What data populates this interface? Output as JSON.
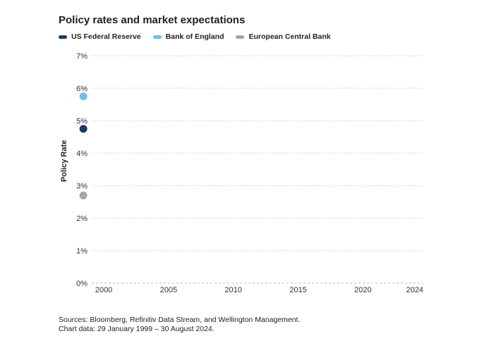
{
  "title": "Policy rates and market expectations",
  "legend": [
    {
      "label": "US Federal Reserve",
      "color": "#1b3a66"
    },
    {
      "label": "Bank of England",
      "color": "#6fbfe8"
    },
    {
      "label": "European Central Bank",
      "color": "#a6a6a6"
    }
  ],
  "source": {
    "line1": "Sources: Bloomberg, Refinitiv Data Stream, and Wellington Management.",
    "line2": "Chart data: 29 January 1999 – 30 August 2024."
  },
  "chart_data": {
    "type": "scatter",
    "ylabel": "Policy Rate",
    "xlabel": "",
    "xlim": [
      1999.07,
      2024.67
    ],
    "ylim": [
      0,
      7
    ],
    "x_ticks": [
      "2000",
      "2005",
      "2010",
      "2015",
      "2020",
      "2024"
    ],
    "y_ticks": [
      "0%",
      "1%",
      "2%",
      "3%",
      "4%",
      "5%",
      "6%",
      "7%"
    ],
    "grid": "horizontal dotted",
    "series": [
      {
        "name": "US Federal Reserve",
        "color": "#1b3a66",
        "points": [
          {
            "x": "1999-01-29",
            "y": 4.75
          }
        ]
      },
      {
        "name": "Bank of England",
        "color": "#6fbfe8",
        "points": [
          {
            "x": "1999-01-29",
            "y": 5.75
          }
        ]
      },
      {
        "name": "European Central Bank",
        "color": "#a6a6a6",
        "points": [
          {
            "x": "1999-01-29",
            "y": 2.7
          }
        ]
      }
    ]
  }
}
